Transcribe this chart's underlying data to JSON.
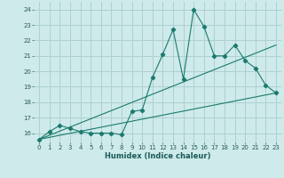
{
  "xlabel": "Humidex (Indice chaleur)",
  "bg_color": "#ceeaea",
  "grid_color": "#aed0d0",
  "line_color": "#1a7a6e",
  "xlim": [
    -0.5,
    23.5
  ],
  "ylim": [
    15.4,
    24.5
  ],
  "xticks": [
    0,
    1,
    2,
    3,
    4,
    5,
    6,
    7,
    8,
    9,
    10,
    11,
    12,
    13,
    14,
    15,
    16,
    17,
    18,
    19,
    20,
    21,
    22,
    23
  ],
  "yticks": [
    16,
    17,
    18,
    19,
    20,
    21,
    22,
    23,
    24
  ],
  "curve1_x": [
    0,
    1,
    2,
    3,
    4,
    5,
    6,
    7,
    8,
    9,
    10,
    11,
    12,
    13,
    14,
    15,
    16,
    17,
    18,
    19,
    20,
    21,
    22,
    23
  ],
  "curve1_y": [
    15.6,
    16.1,
    16.5,
    16.3,
    16.1,
    16.0,
    16.0,
    16.0,
    15.9,
    17.4,
    17.5,
    19.6,
    21.1,
    22.7,
    19.5,
    24.0,
    22.9,
    21.0,
    21.0,
    21.7,
    20.7,
    20.2,
    19.1,
    18.6
  ],
  "curve2_x": [
    0,
    23
  ],
  "curve2_y": [
    15.6,
    21.7
  ],
  "curve3_x": [
    0,
    23
  ],
  "curve3_y": [
    15.6,
    18.6
  ]
}
